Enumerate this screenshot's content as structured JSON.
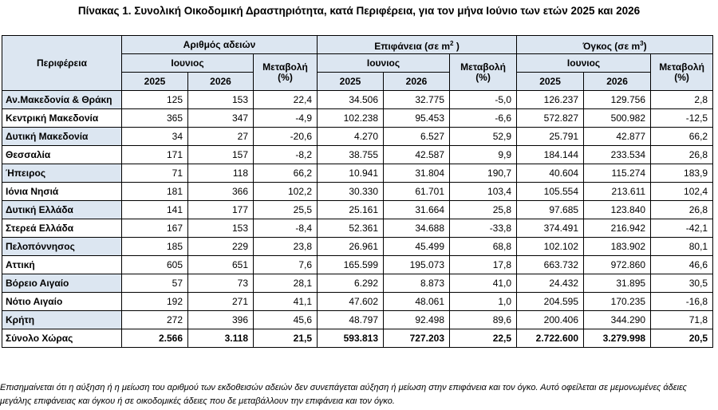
{
  "title": "Πίνακας 1. Συνολική Οικοδομική Δραστηριότητα, κατά Περιφέρεια, για τον μήνα Ιούνιο των ετών 2025 και 2026",
  "headers": {
    "region": "Περιφέρεια",
    "permits": "Αριθμός αδειών",
    "area_prefix": "Επιφάνεια (σε m",
    "area_sup": "2",
    "area_suffix": " )",
    "volume_prefix": "Όγκος (σε m",
    "volume_sup": "3",
    "volume_suffix": ")",
    "june": "Ιουνιος",
    "change": "Μεταβολή (%)",
    "year1": "2025",
    "year2": "2026"
  },
  "rows": [
    {
      "region": "Αν.Μακεδονία & Θράκη",
      "p25": "125",
      "p26": "153",
      "pch": "22,4",
      "a25": "34.506",
      "a26": "32.775",
      "ach": "-5,0",
      "v25": "126.237",
      "v26": "129.756",
      "vch": "2,8"
    },
    {
      "region": "Κεντρική Μακεδονία",
      "p25": "365",
      "p26": "347",
      "pch": "-4,9",
      "a25": "102.238",
      "a26": "95.453",
      "ach": "-6,6",
      "v25": "572.827",
      "v26": "500.982",
      "vch": "-12,5"
    },
    {
      "region": "Δυτική Μακεδονία",
      "p25": "34",
      "p26": "27",
      "pch": "-20,6",
      "a25": "4.270",
      "a26": "6.527",
      "ach": "52,9",
      "v25": "25.791",
      "v26": "42.877",
      "vch": "66,2"
    },
    {
      "region": "Θεσσαλία",
      "p25": "171",
      "p26": "157",
      "pch": "-8,2",
      "a25": "38.755",
      "a26": "42.587",
      "ach": "9,9",
      "v25": "184.144",
      "v26": "233.534",
      "vch": "26,8"
    },
    {
      "region": "Ήπειρος",
      "p25": "71",
      "p26": "118",
      "pch": "66,2",
      "a25": "10.941",
      "a26": "31.804",
      "ach": "190,7",
      "v25": "40.604",
      "v26": "115.274",
      "vch": "183,9"
    },
    {
      "region": "Ιόνια Νησιά",
      "p25": "181",
      "p26": "366",
      "pch": "102,2",
      "a25": "30.330",
      "a26": "61.701",
      "ach": "103,4",
      "v25": "105.554",
      "v26": "213.611",
      "vch": "102,4"
    },
    {
      "region": "Δυτική Ελλάδα",
      "p25": "141",
      "p26": "177",
      "pch": "25,5",
      "a25": "25.161",
      "a26": "31.664",
      "ach": "25,8",
      "v25": "97.685",
      "v26": "123.840",
      "vch": "26,8"
    },
    {
      "region": "Στερεά Ελλάδα",
      "p25": "167",
      "p26": "153",
      "pch": "-8,4",
      "a25": "52.361",
      "a26": "34.688",
      "ach": "-33,8",
      "v25": "374.491",
      "v26": "216.942",
      "vch": "-42,1"
    },
    {
      "region": "Πελοπόννησος",
      "p25": "185",
      "p26": "229",
      "pch": "23,8",
      "a25": "26.961",
      "a26": "45.499",
      "ach": "68,8",
      "v25": "102.102",
      "v26": "183.902",
      "vch": "80,1"
    },
    {
      "region": "Αττική",
      "p25": "605",
      "p26": "651",
      "pch": "7,6",
      "a25": "165.599",
      "a26": "195.073",
      "ach": "17,8",
      "v25": "663.732",
      "v26": "972.860",
      "vch": "46,6"
    },
    {
      "region": "Βόρειο Αιγαίο",
      "p25": "57",
      "p26": "73",
      "pch": "28,1",
      "a25": "6.292",
      "a26": "8.873",
      "ach": "41,0",
      "v25": "24.432",
      "v26": "31.895",
      "vch": "30,5"
    },
    {
      "region": "Νότιο Αιγαίο",
      "p25": "192",
      "p26": "271",
      "pch": "41,1",
      "a25": "47.602",
      "a26": "48.061",
      "ach": "1,0",
      "v25": "204.595",
      "v26": "170.235",
      "vch": "-16,8"
    },
    {
      "region": "Κρήτη",
      "p25": "272",
      "p26": "396",
      "pch": "45,6",
      "a25": "48.797",
      "a26": "92.498",
      "ach": "89,6",
      "v25": "200.406",
      "v26": "344.290",
      "vch": "71,8"
    }
  ],
  "total": {
    "region": "Σύνολο Χώρας",
    "p25": "2.566",
    "p26": "3.118",
    "pch": "21,5",
    "a25": "593.813",
    "a26": "727.203",
    "ach": "22,5",
    "v25": "2.722.600",
    "v26": "3.279.998",
    "vch": "20,5"
  },
  "footnote": "Επισημαίνεται ότι η αύξηση ή η μείωση του αριθμού των εκδοθεισών αδειών δεν συνεπάγεται αύξηση ή μείωση στην επιφάνεια και τον όγκο. Αυτό οφείλεται σε μεμονωμένες άδειες μεγάλης επιφάνειας και όγκου ή σε οικοδομικές άδειες που δε μεταβάλλουν την επιφάνεια και τον όγκο."
}
